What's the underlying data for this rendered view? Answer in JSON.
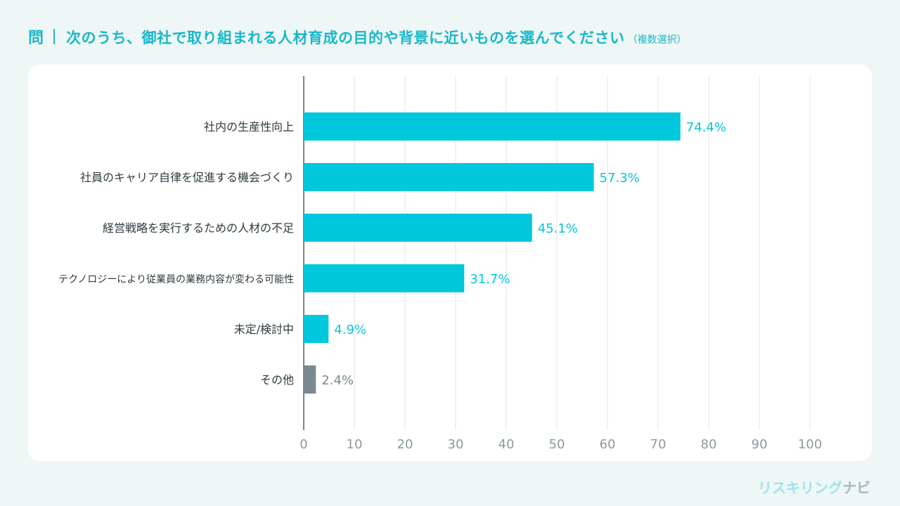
{
  "header": {
    "question_mark": "問",
    "question_text": "次のうち、御社で取り組まれる人材育成の目的や背景に近いものを選んでください",
    "question_note": "（複数選択）"
  },
  "brand": {
    "part1": "リスキリング",
    "part2": "ナビ"
  },
  "colors": {
    "accent": "#00c8dc",
    "other": "#7a8a90",
    "grid": "#dfe5e7",
    "axis": "#4d5a60",
    "label": "#2e3a3f",
    "tick": "#8a9aa0",
    "title": "#19b7c9"
  },
  "chart_data": {
    "type": "bar",
    "orientation": "horizontal",
    "title": "次のうち、御社で取り組まれる人材育成の目的や背景に近いものを選んでください（複数選択）",
    "xlabel": "",
    "ylabel": "",
    "xlim": [
      0,
      100
    ],
    "xticks": [
      0,
      10,
      20,
      30,
      40,
      50,
      60,
      70,
      80,
      90,
      100
    ],
    "grid": true,
    "categories": [
      "社内の生産性向上",
      "社員のキャリア自律を促進する機会づくり",
      "経営戦略を実行するための人材の不足",
      "テクノロジーにより従業員の業務内容が変わる可能性",
      "未定/検討中",
      "その他"
    ],
    "values": [
      74.4,
      57.3,
      45.1,
      31.7,
      4.9,
      2.4
    ],
    "value_labels": [
      "74.4%",
      "57.3%",
      "45.1%",
      "31.7%",
      "4.9%",
      "2.4%"
    ],
    "bar_colors": [
      "accent",
      "accent",
      "accent",
      "accent",
      "accent",
      "other"
    ]
  }
}
